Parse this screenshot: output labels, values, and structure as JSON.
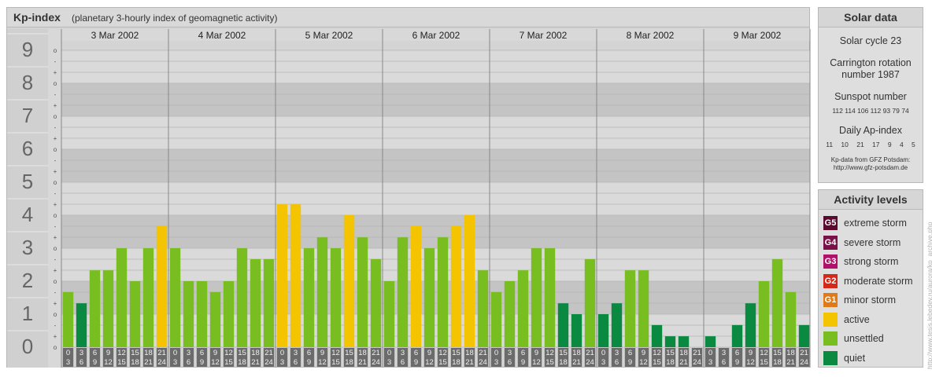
{
  "header": {
    "title": "Kp-index",
    "subtitle": "(planetary 3-hourly index of geomagnetic activity)"
  },
  "chart_data": {
    "type": "bar",
    "title": "Kp-index",
    "subtitle": "(planetary 3-hourly index of geomagnetic activity)",
    "ylim": [
      0,
      9
    ],
    "y_major_ticks": [
      "0",
      "1",
      "2",
      "3",
      "4",
      "5",
      "6",
      "7",
      "8",
      "9"
    ],
    "y_minor_ticks": [
      "o",
      "+",
      "-"
    ],
    "days": [
      "3 Mar 2002",
      "4 Mar 2002",
      "5 Mar 2002",
      "6 Mar 2002",
      "7 Mar 2002",
      "8 Mar 2002",
      "9 Mar 2002"
    ],
    "interval_top": [
      "0",
      "3",
      "6",
      "9",
      "12",
      "15",
      "18",
      "21"
    ],
    "interval_bottom": [
      "3",
      "6",
      "9",
      "12",
      "15",
      "18",
      "21",
      "24"
    ],
    "values": [
      [
        1.67,
        1.33,
        2.33,
        2.33,
        3.0,
        2.0,
        3.0,
        3.67
      ],
      [
        3.0,
        2.0,
        2.0,
        1.67,
        2.0,
        3.0,
        2.67,
        2.67
      ],
      [
        4.33,
        4.33,
        3.0,
        3.33,
        3.0,
        4.0,
        3.33,
        2.67
      ],
      [
        2.0,
        3.33,
        3.67,
        3.0,
        3.33,
        3.67,
        4.0,
        2.33
      ],
      [
        1.67,
        2.0,
        2.33,
        3.0,
        3.0,
        1.33,
        1.0,
        2.67
      ],
      [
        1.0,
        1.33,
        2.33,
        2.33,
        0.67,
        0.33,
        0.33,
        0.0
      ],
      [
        0.33,
        0.0,
        0.67,
        1.33,
        2.0,
        2.67,
        1.67,
        0.67
      ]
    ],
    "legend": [
      {
        "code": "G5",
        "label": "extreme storm",
        "color": "#5a0a2e"
      },
      {
        "code": "G4",
        "label": "severe storm",
        "color": "#7a1048"
      },
      {
        "code": "G3",
        "label": "strong storm",
        "color": "#b0106a"
      },
      {
        "code": "G2",
        "label": "moderate storm",
        "color": "#d62818"
      },
      {
        "code": "G1",
        "label": "minor storm",
        "color": "#e07a18"
      },
      {
        "code": "",
        "label": "active",
        "color": "#f5c400"
      },
      {
        "code": "",
        "label": "unsettled",
        "color": "#78be20"
      },
      {
        "code": "",
        "label": "quiet",
        "color": "#0a8a40"
      }
    ]
  },
  "solar": {
    "title": "Solar data",
    "cycle": "Solar cycle 23",
    "carrington_1": "Carrington rotation",
    "carrington_2": "number 1987",
    "sunspot_label": "Sunspot number",
    "sunspot_values": "112 114 106 112 93 79 74",
    "ap_label": "Daily Ap-index",
    "ap_values": "11 10 21 17 9 4 5",
    "source_1": "Kp-data from GFZ Potsdam:",
    "source_2": "http://www.gfz-potsdam.de"
  },
  "legend_panel": {
    "title": "Activity levels"
  },
  "credit": "http://www.tesis.lebedev.ru/aurora/kp_archive.php"
}
